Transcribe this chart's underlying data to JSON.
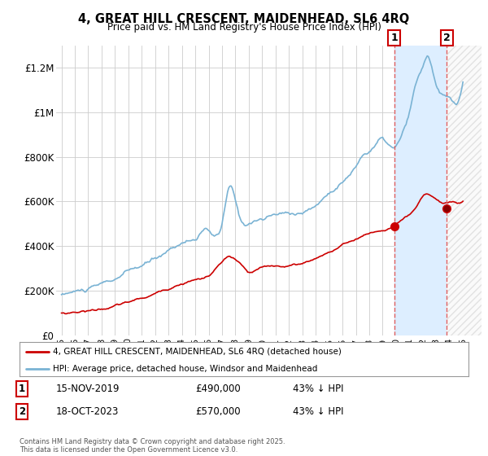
{
  "title": "4, GREAT HILL CRESCENT, MAIDENHEAD, SL6 4RQ",
  "subtitle": "Price paid vs. HM Land Registry's House Price Index (HPI)",
  "legend_line1": "4, GREAT HILL CRESCENT, MAIDENHEAD, SL6 4RQ (detached house)",
  "legend_line2": "HPI: Average price, detached house, Windsor and Maidenhead",
  "annotation1_label": "1",
  "annotation1_date": "15-NOV-2019",
  "annotation1_price": "£490,000",
  "annotation1_hpi": "43% ↓ HPI",
  "annotation2_label": "2",
  "annotation2_date": "18-OCT-2023",
  "annotation2_price": "£570,000",
  "annotation2_hpi": "43% ↓ HPI",
  "footer": "Contains HM Land Registry data © Crown copyright and database right 2025.\nThis data is licensed under the Open Government Licence v3.0.",
  "hpi_color": "#7ab3d4",
  "price_color": "#cc0000",
  "dashed_color": "#e06060",
  "background_color": "#ffffff",
  "grid_color": "#cccccc",
  "shade_color": "#ddeeff",
  "hatch_color": "#bbbbbb",
  "ylim": [
    0,
    1300000
  ],
  "yticks": [
    0,
    200000,
    400000,
    600000,
    800000,
    1000000,
    1200000
  ],
  "ytick_labels": [
    "£0",
    "£200K",
    "£400K",
    "£600K",
    "£800K",
    "£1M",
    "£1.2M"
  ],
  "sale1_x": 2019.88,
  "sale1_y": 490000,
  "sale2_x": 2023.79,
  "sale2_y": 570000,
  "xmin": 1994.6,
  "xmax": 2026.4,
  "xticks": [
    1995,
    1996,
    1997,
    1998,
    1999,
    2000,
    2001,
    2002,
    2003,
    2004,
    2005,
    2006,
    2007,
    2008,
    2009,
    2010,
    2011,
    2012,
    2013,
    2014,
    2015,
    2016,
    2017,
    2018,
    2019,
    2020,
    2021,
    2022,
    2023,
    2024,
    2025
  ]
}
